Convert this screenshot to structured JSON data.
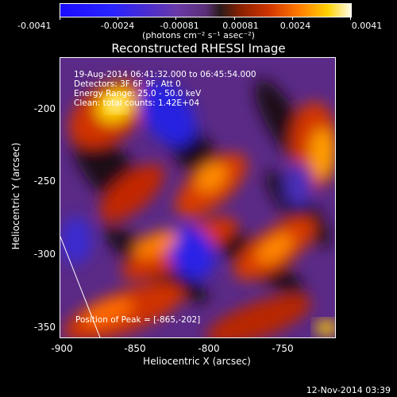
{
  "colorbar": {
    "ticks": [
      "-0.0041",
      "-0.0024",
      "-0.00081",
      "0.00081",
      "0.0024",
      "0.0041"
    ],
    "units": "(photons cm⁻² s⁻¹ asec⁻²)"
  },
  "title": "Reconstructed RHESSI Image",
  "info": {
    "time": "19-Aug-2014 06:41:32.000 to 06:45:54.000",
    "detectors": "Detectors: 3F 6F 9F, Att 0",
    "energy": "Energy Range: 25.0 - 50.0 keV",
    "clean": "Clean: total counts: 1.42E+04"
  },
  "peak": "Position of Peak = [-865,-202]",
  "axes": {
    "xlabel": "Heliocentric X (arcsec)",
    "ylabel": "Heliocentric Y (arcsec)",
    "xticks": [
      "-900",
      "-850",
      "-800",
      "-750"
    ],
    "yticks": [
      "-200",
      "-250",
      "-300",
      "-350"
    ]
  },
  "footer": "12-Nov-2014 03:39"
}
